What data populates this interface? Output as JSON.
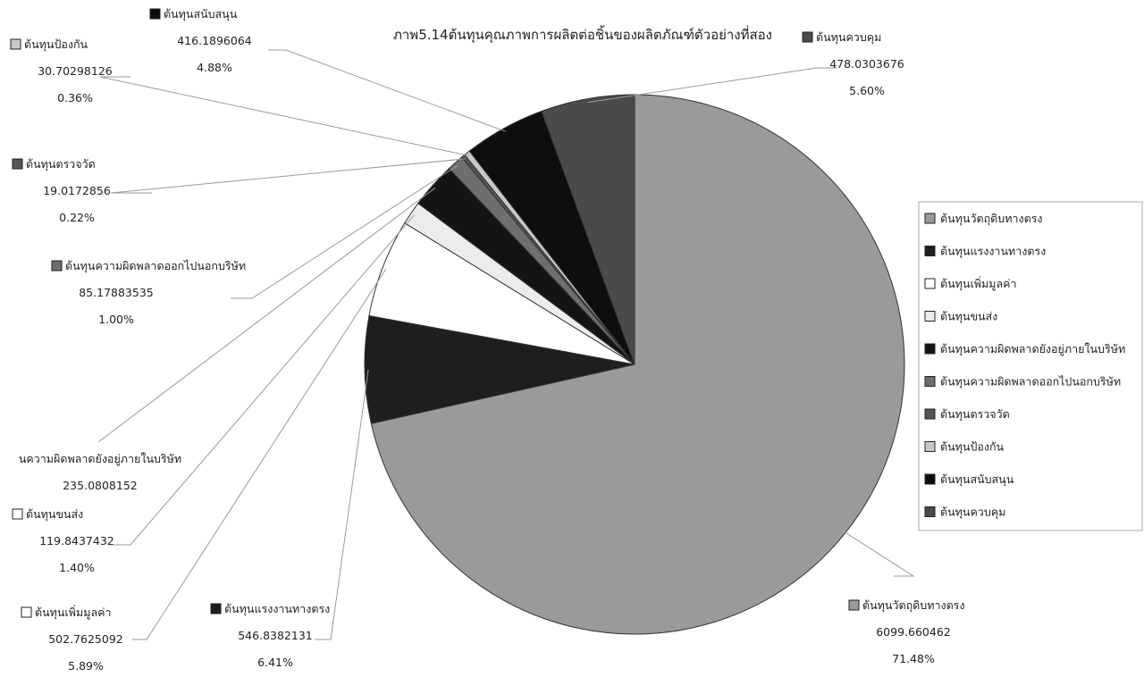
{
  "chart_data": {
    "type": "pie",
    "title": "ภาพ5.14ต้นทุนคุณภาพการผลิตต่อชิ้นของผลิตภัณฑ์ตัวอย่างที่สอง",
    "legend_position": "right",
    "slices": [
      {
        "label": "ต้นทุนวัตถุดิบทางตรง",
        "value": 6099.660462,
        "value_text": "6099.660462",
        "percent": "71.48%",
        "color": "#9a9a9a"
      },
      {
        "label": "ต้นทุนแรงงานทางตรง",
        "value": 546.8382131,
        "value_text": "546.8382131",
        "percent": "6.41%",
        "color": "#1e1e1e"
      },
      {
        "label": "ต้นทุนเพิ่มมูลค่า",
        "value": 502.7625092,
        "value_text": "502.7625092",
        "percent": "5.89%",
        "color": "#ffffff"
      },
      {
        "label": "ต้นทุนขนส่ง",
        "value": 119.8437432,
        "value_text": "119.8437432",
        "percent": "1.40%",
        "color": "#ececec"
      },
      {
        "label": "ต้นทุนความผิดพลาดยังอยู่ภายในบริษัท",
        "value": 235.0808152,
        "value_text": "235.0808152",
        "percent": "",
        "color": "#141414"
      },
      {
        "label": "ต้นทุนความผิดพลาดออกไปนอกบริษัท",
        "value": 85.17883535,
        "value_text": "85.17883535",
        "percent": "1.00%",
        "color": "#6e6e6e"
      },
      {
        "label": "ต้นทุนตรวจวัด",
        "value": 19.0172856,
        "value_text": "19.0172856",
        "percent": "0.22%",
        "color": "#555555"
      },
      {
        "label": "ต้นทุนป้องกัน",
        "value": 30.70298126,
        "value_text": "30.70298126",
        "percent": "0.36%",
        "color": "#c8c8c8"
      },
      {
        "label": "ต้นทุนสนับสนุน",
        "value": 416.1896064,
        "value_text": "416.1896064",
        "percent": "4.88%",
        "color": "#0e0e0e"
      },
      {
        "label": "ต้นทุนควบคุม",
        "value": 478.0303676,
        "value_text": "478.0303676",
        "percent": "5.60%",
        "color": "#4a4a4a"
      }
    ],
    "callout_labels": [
      {
        "name": "ต้นทุนวัตถุดิบทางตรง",
        "value": "6099.660462",
        "percent": "71.48%"
      },
      {
        "name": "ต้นทุนแรงงานทางตรง",
        "value": "546.8382131",
        "percent": "6.41%"
      },
      {
        "name": "ต้นทุนเพิ่มมูลค่า",
        "value": "502.7625092",
        "percent": "5.89%"
      },
      {
        "name": "ต้นทุนขนส่ง",
        "value": "119.8437432",
        "percent": "1.40%"
      },
      {
        "name": "นความผิดพลาดยังอยู่ภายในบริษัท",
        "value": "235.0808152",
        "percent": ""
      },
      {
        "name": "ต้นทุนความผิดพลาดออกไปนอกบริษัท",
        "value": "85.17883535",
        "percent": "1.00%"
      },
      {
        "name": "ต้นทุนตรวจวัด",
        "value": "19.0172856",
        "percent": "0.22%"
      },
      {
        "name": "ต้นทุนป้องกัน",
        "value": "30.70298126",
        "percent": "0.36%"
      },
      {
        "name": "ต้นทุนสนับสนุน",
        "value": "416.1896064",
        "percent": "4.88%"
      },
      {
        "name": "ต้นทุนควบคุม",
        "value": "478.0303676",
        "percent": "5.60%"
      }
    ]
  }
}
